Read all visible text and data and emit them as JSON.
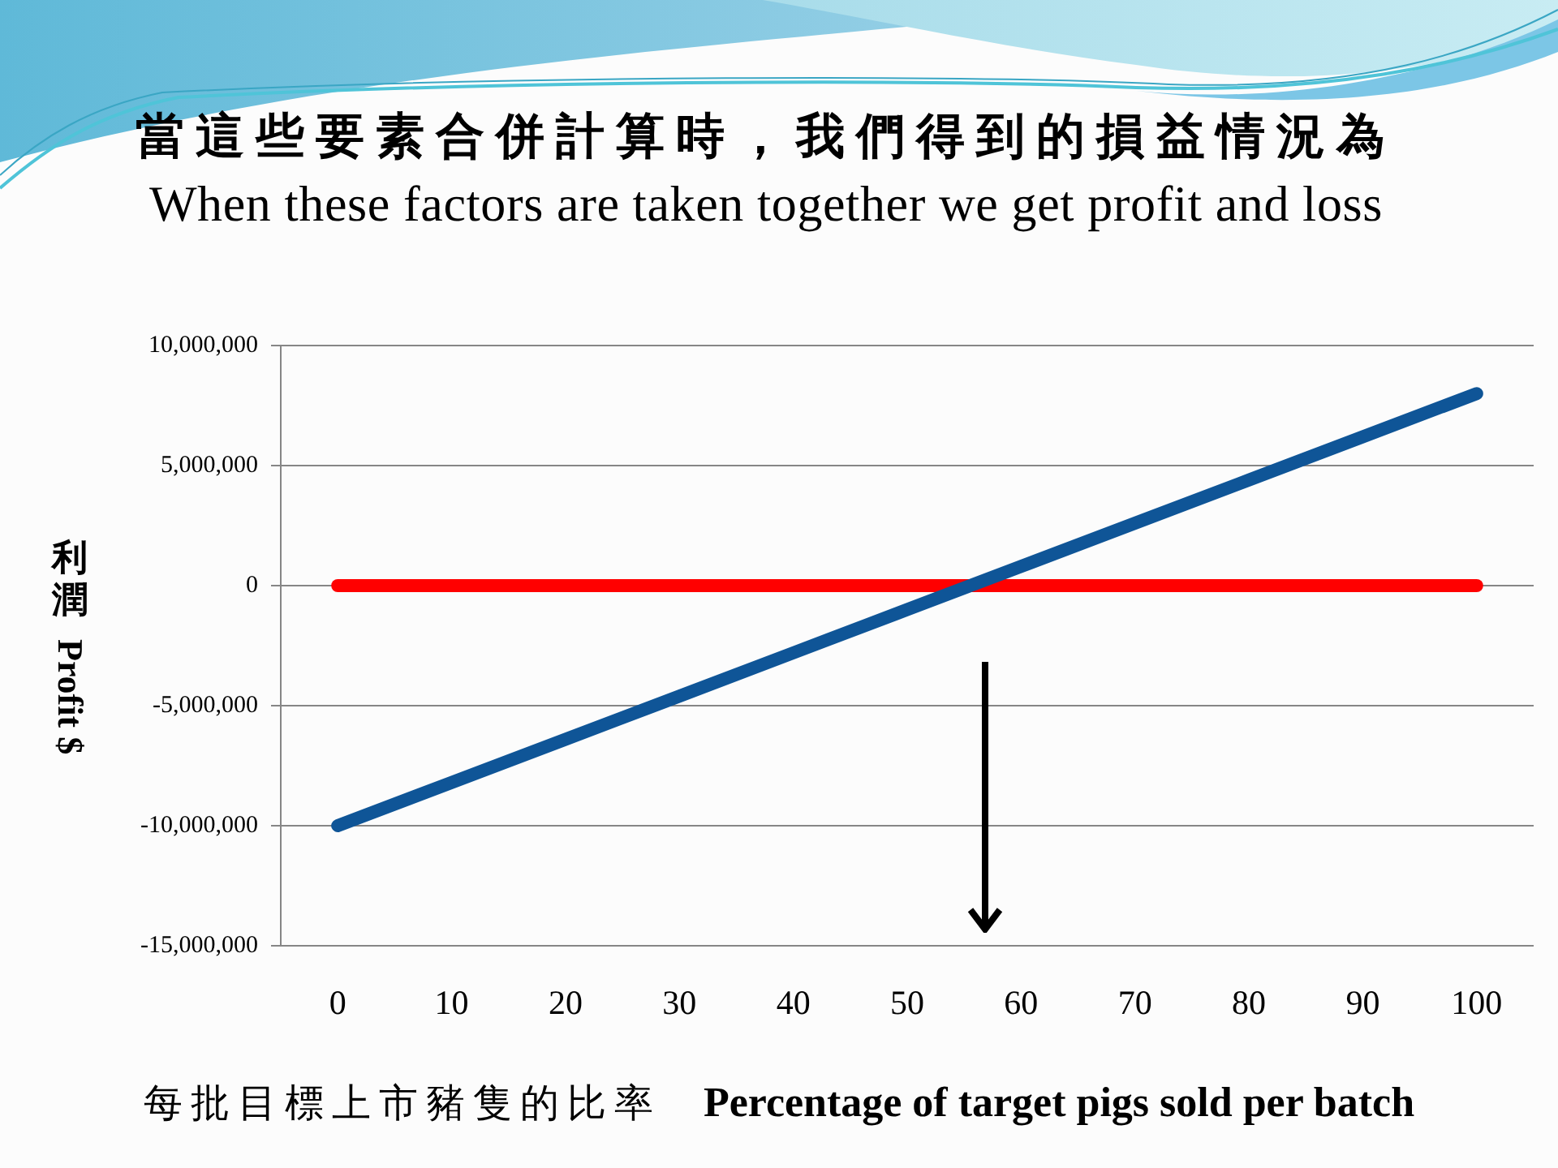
{
  "chart_data": {
    "type": "line",
    "title": "當這些要素合併計算時，我們得到的損益情況為",
    "subtitle": "When these factors are taken together we get profit and loss",
    "xlabel": "每批目標上市豬隻的比率    Percentage of target pigs sold per batch",
    "ylabel": "利潤  Profit $",
    "categories": [
      "0",
      "10",
      "20",
      "30",
      "40",
      "50",
      "60",
      "70",
      "80",
      "90",
      "100"
    ],
    "series": [
      {
        "color": "#0f5597",
        "values": [
          -10000000,
          -8200000,
          -6400000,
          -4600000,
          -2800000,
          -1000000,
          800000,
          2600000,
          4400000,
          6200000,
          8000000
        ]
      },
      {
        "color": "#ff0000",
        "values": [
          0,
          0,
          0,
          0,
          0,
          0,
          0,
          0,
          0,
          0,
          0
        ]
      }
    ],
    "ylim": [
      -15000000,
      10000000
    ],
    "yticks": [
      {
        "value": -15000000,
        "label": "-15,000,000"
      },
      {
        "value": -10000000,
        "label": "-10,000,000"
      },
      {
        "value": -5000000,
        "label": "-5,000,000"
      },
      0,
      {
        "value": 5000000,
        "label": "5,000,000"
      },
      {
        "value": 10000000,
        "label": "10,000,000"
      }
    ],
    "grid": "y",
    "marker": "none",
    "line_style": "solid"
  }
}
